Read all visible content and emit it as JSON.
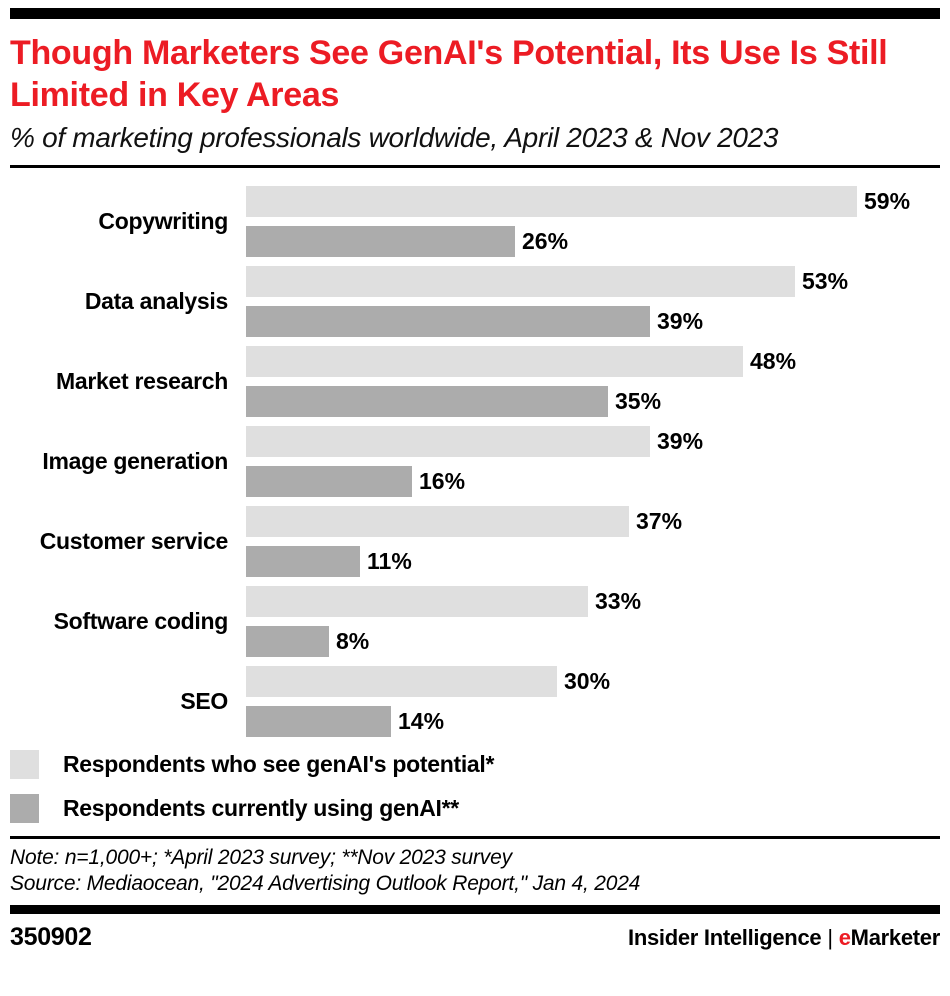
{
  "header": {
    "title": "Though Marketers See GenAI's Potential, Its Use Is Still Limited in Key Areas",
    "subtitle": "% of marketing professionals worldwide, April 2023 & Nov 2023",
    "title_color": "#ec1c24"
  },
  "chart_data": {
    "type": "bar",
    "orientation": "horizontal",
    "title": "Though Marketers See GenAI's Potential, Its Use Is Still Limited in Key Areas",
    "subtitle": "% of marketing professionals worldwide, April 2023 & Nov 2023",
    "categories": [
      "Copywriting",
      "Data analysis",
      "Market research",
      "Image generation",
      "Customer service",
      "Software coding",
      "SEO"
    ],
    "series": [
      {
        "name": "Respondents who see genAI's potential*",
        "color": "#dfdfdf",
        "values": [
          59,
          53,
          48,
          39,
          37,
          33,
          30
        ]
      },
      {
        "name": "Respondents currently using genAI**",
        "color": "#acacac",
        "values": [
          26,
          39,
          35,
          16,
          11,
          8,
          14
        ]
      }
    ],
    "value_suffix": "%",
    "value_labels": true,
    "xlim": [
      0,
      62
    ],
    "grid": false,
    "legend_position": "bottom"
  },
  "legend": {
    "items": [
      {
        "label": "Respondents who see genAI's potential*",
        "color": "#dfdfdf"
      },
      {
        "label": "Respondents currently using genAI**",
        "color": "#acacac"
      }
    ]
  },
  "footnotes": {
    "note": "Note: n=1,000+; *April 2023 survey; **Nov 2023 survey",
    "source": "Source: Mediaocean, \"2024 Advertising Outlook Report,\" Jan 4, 2024"
  },
  "footer": {
    "chart_id": "350902",
    "brand_left": "Insider Intelligence",
    "brand_separator": "|",
    "brand_e": "e",
    "brand_e_color": "#ec1c24",
    "brand_right": "Marketer"
  }
}
